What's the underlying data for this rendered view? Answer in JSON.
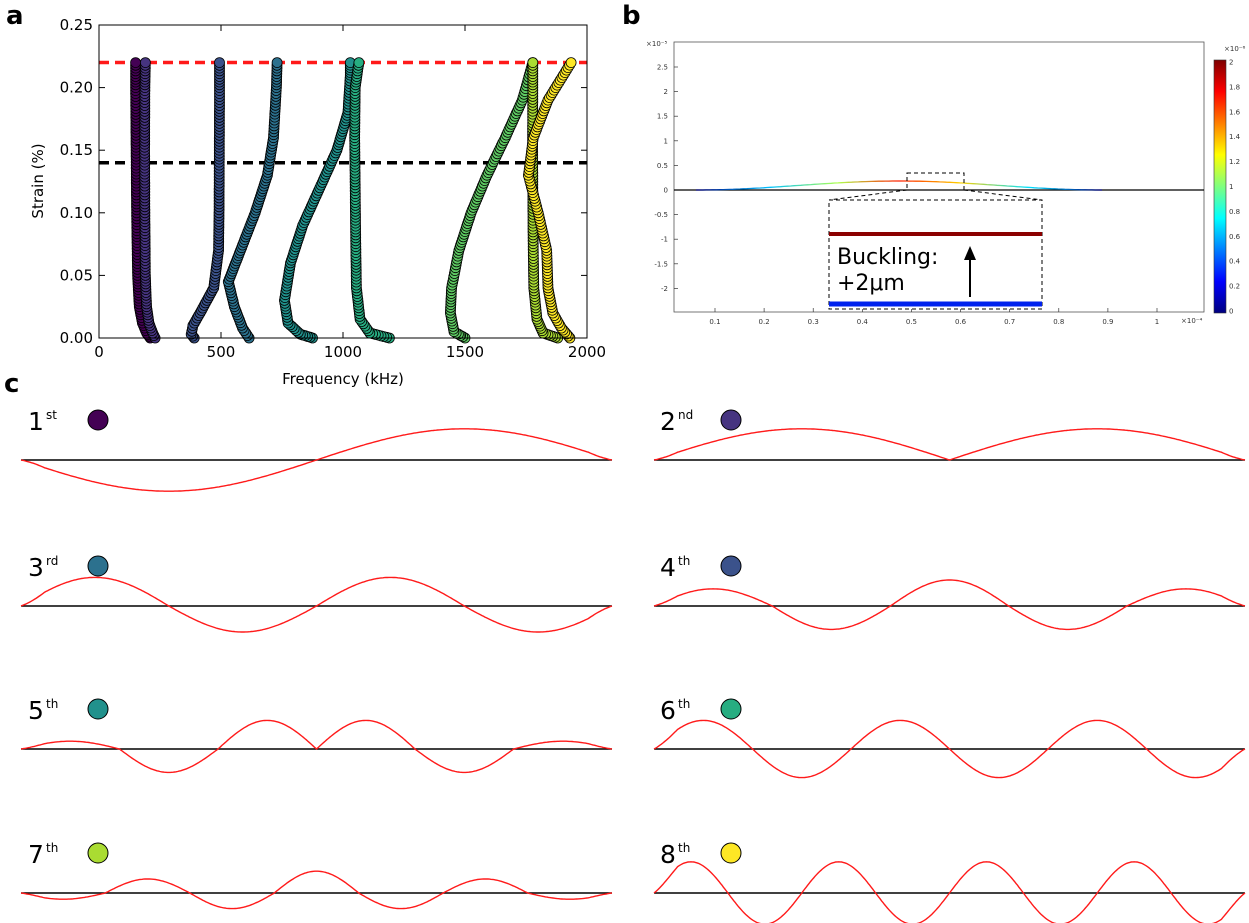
{
  "panels": {
    "a": {
      "label": "a"
    },
    "b": {
      "label": "b"
    },
    "c": {
      "label": "c"
    }
  },
  "chart_data": [
    {
      "type": "scatter",
      "panel": "a",
      "xlabel": "Frequency (kHz)",
      "ylabel": "Strain (%)",
      "xlim": [
        0,
        2000
      ],
      "ylim": [
        0,
        0.25
      ],
      "xticks": [
        "0",
        "500",
        "1000",
        "1500",
        "2000"
      ],
      "yticks": [
        "0.00",
        "0.05",
        "0.10",
        "0.15",
        "0.20",
        "0.25"
      ],
      "reference_lines": [
        {
          "y": 0.22,
          "color": "#ff1a1a",
          "style": "dashed"
        },
        {
          "y": 0.14,
          "color": "#000000",
          "style": "dashed"
        }
      ],
      "series": [
        {
          "color": "#440154",
          "points": [
            [
              210,
              0
            ],
            [
              195,
              0.004
            ],
            [
              178,
              0.012
            ],
            [
              165,
              0.025
            ],
            [
              158,
              0.05
            ],
            [
              154,
              0.1
            ],
            [
              152,
              0.15
            ],
            [
              150,
              0.2
            ],
            [
              150,
              0.22
            ]
          ]
        },
        {
          "color": "#463480",
          "points": [
            [
              230,
              0
            ],
            [
              220,
              0.004
            ],
            [
              205,
              0.012
            ],
            [
              195,
              0.025
            ],
            [
              190,
              0.05
            ],
            [
              188,
              0.1
            ],
            [
              187,
              0.15
            ],
            [
              188,
              0.2
            ],
            [
              190,
              0.22
            ]
          ]
        },
        {
          "color": "#3b528b",
          "points": [
            [
              390,
              0
            ],
            [
              378,
              0.003
            ],
            [
              385,
              0.01
            ],
            [
              420,
              0.022
            ],
            [
              470,
              0.04
            ],
            [
              490,
              0.07
            ],
            [
              492,
              0.1
            ],
            [
              493,
              0.15
            ],
            [
              494,
              0.2
            ],
            [
              494,
              0.22
            ]
          ]
        },
        {
          "color": "#2c718e",
          "points": [
            [
              615,
              0
            ],
            [
              588,
              0.008
            ],
            [
              555,
              0.025
            ],
            [
              530,
              0.045
            ],
            [
              580,
              0.07
            ],
            [
              640,
              0.1
            ],
            [
              690,
              0.13
            ],
            [
              715,
              0.16
            ],
            [
              727,
              0.2
            ],
            [
              730,
              0.22
            ]
          ]
        },
        {
          "color": "#21918c",
          "points": [
            [
              875,
              0
            ],
            [
              825,
              0.003
            ],
            [
              775,
              0.012
            ],
            [
              760,
              0.03
            ],
            [
              785,
              0.06
            ],
            [
              835,
              0.09
            ],
            [
              905,
              0.12
            ],
            [
              975,
              0.15
            ],
            [
              1020,
              0.18
            ],
            [
              1030,
              0.21
            ],
            [
              1030,
              0.22
            ]
          ]
        },
        {
          "color": "#27ad81",
          "points": [
            [
              1190,
              0
            ],
            [
              1110,
              0.004
            ],
            [
              1070,
              0.015
            ],
            [
              1055,
              0.04
            ],
            [
              1052,
              0.08
            ],
            [
              1050,
              0.12
            ],
            [
              1048,
              0.16
            ],
            [
              1050,
              0.2
            ],
            [
              1065,
              0.22
            ]
          ]
        },
        {
          "color": "#5ec962",
          "points": [
            [
              1500,
              0
            ],
            [
              1455,
              0.005
            ],
            [
              1440,
              0.02
            ],
            [
              1445,
              0.04
            ],
            [
              1475,
              0.07
            ],
            [
              1525,
              0.1
            ],
            [
              1590,
              0.13
            ],
            [
              1665,
              0.16
            ],
            [
              1735,
              0.19
            ],
            [
              1778,
              0.22
            ]
          ]
        },
        {
          "color": "#aadc32",
          "points": [
            [
              1880,
              0
            ],
            [
              1820,
              0.004
            ],
            [
              1795,
              0.015
            ],
            [
              1782,
              0.04
            ],
            [
              1779,
              0.08
            ],
            [
              1778,
              0.12
            ],
            [
              1777,
              0.16
            ],
            [
              1778,
              0.2
            ],
            [
              1778,
              0.22
            ]
          ]
        },
        {
          "color": "#fde725",
          "points": [
            [
              1930,
              0
            ],
            [
              1895,
              0.008
            ],
            [
              1860,
              0.02
            ],
            [
              1840,
              0.04
            ],
            [
              1835,
              0.07
            ],
            [
              1800,
              0.1
            ],
            [
              1760,
              0.13
            ],
            [
              1780,
              0.16
            ],
            [
              1840,
              0.19
            ],
            [
              1935,
              0.22
            ]
          ]
        }
      ]
    },
    {
      "type": "heatmap",
      "panel": "b",
      "x_exponent": "×10⁻⁴",
      "y_exponent": "×10⁻⁵",
      "colorbar_exponent": "×10⁻⁶",
      "xticks": [
        "0.1",
        "0.2",
        "0.3",
        "0.4",
        "0.5",
        "0.6",
        "0.7",
        "0.8",
        "0.9",
        "1"
      ],
      "yticks": [
        "2.5",
        "2",
        "1.5",
        "1",
        "0.5",
        "0",
        "-0.5",
        "-1",
        "-1.5",
        "-2"
      ],
      "colorbar_ticks": [
        "2",
        "1.8",
        "1.6",
        "1.4",
        "1.2",
        "1",
        "0.8",
        "0.6",
        "0.4",
        "0.2",
        "0"
      ],
      "annotation_line1": "Buckling:",
      "annotation_line2": "+2μm"
    }
  ],
  "modes": [
    {
      "num": "1",
      "sup": "st",
      "color": "#440154",
      "halfwaves": [
        -0.6,
        0.6
      ]
    },
    {
      "num": "2",
      "sup": "nd",
      "color": "#463480",
      "halfwaves": [
        0.6,
        0.6
      ]
    },
    {
      "num": "3",
      "sup": "rd",
      "color": "#2c718e",
      "halfwaves": [
        0.55,
        -0.5,
        0.55,
        -0.5
      ]
    },
    {
      "num": "4",
      "sup": "th",
      "color": "#3b528b",
      "halfwaves": [
        0.33,
        -0.45,
        0.5,
        -0.45,
        0.33
      ]
    },
    {
      "num": "5",
      "sup": "th",
      "color": "#21918c",
      "halfwaves": [
        0.15,
        -0.45,
        0.55,
        0.55,
        -0.45,
        0.15
      ]
    },
    {
      "num": "6",
      "sup": "th",
      "color": "#27ad81",
      "halfwaves": [
        0.55,
        -0.55,
        0.55,
        -0.55,
        0.55,
        -0.55
      ]
    },
    {
      "num": "7",
      "sup": "th",
      "color": "#aadc32",
      "halfwaves": [
        -0.12,
        0.27,
        -0.3,
        0.42,
        -0.3,
        0.27,
        -0.12
      ]
    },
    {
      "num": "8",
      "sup": "th",
      "color": "#fde725",
      "halfwaves": [
        0.6,
        -0.6,
        0.6,
        -0.6,
        0.6,
        -0.6,
        0.6,
        -0.6
      ]
    }
  ]
}
